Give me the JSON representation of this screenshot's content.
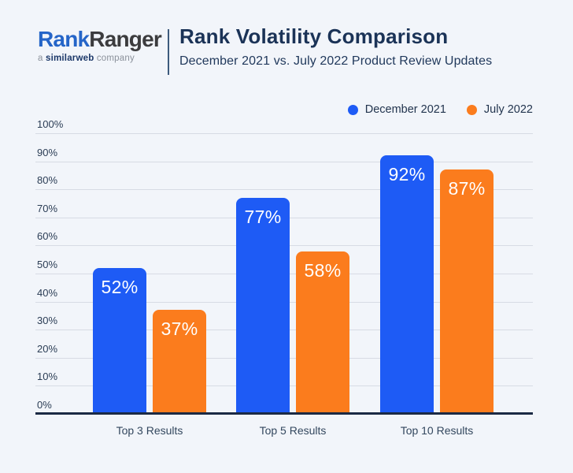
{
  "header": {
    "logo": {
      "brand_blue": "Rank",
      "brand_dark": "Ranger",
      "tagline_prefix": "a ",
      "tagline_brand": "similarweb",
      "tagline_suffix": " company"
    },
    "title": "Rank Volatility Comparison",
    "subtitle": "December 2021 vs. July 2022 Product Review Updates"
  },
  "colors": {
    "background": "#F2F5FA",
    "brand_blue": "#2565C8",
    "series_blue": "#1E5BF5",
    "series_orange": "#FB7C1D",
    "gridline": "#D7DBE4",
    "baseline": "#1B2A44",
    "text_navy": "#1B3357"
  },
  "chart_data": {
    "type": "bar",
    "title": "Rank Volatility Comparison",
    "subtitle": "December 2021 vs. July 2022 Product Review Updates",
    "categories": [
      "Top 3 Results",
      "Top 5 Results",
      "Top 10 Results"
    ],
    "series": [
      {
        "name": "December 2021",
        "color": "#1E5BF5",
        "values": [
          52,
          77,
          92
        ]
      },
      {
        "name": "July 2022",
        "color": "#FB7C1D",
        "values": [
          37,
          58,
          87
        ]
      }
    ],
    "value_suffix": "%",
    "data_labels": "inside-top",
    "ylim": [
      0,
      100
    ],
    "ytick_values": [
      0,
      10,
      20,
      30,
      40,
      50,
      60,
      70,
      80,
      90,
      100
    ],
    "yticks": [
      "0%",
      "10%",
      "20%",
      "30%",
      "40%",
      "50%",
      "60%",
      "70%",
      "80%",
      "90%",
      "100%"
    ],
    "grid": true,
    "legend_position": "top-right"
  }
}
